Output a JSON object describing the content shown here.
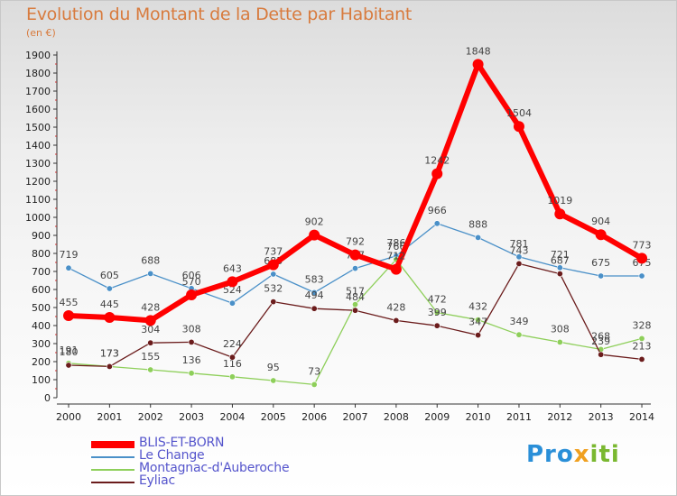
{
  "title": "Evolution du Montant de la Dette par Habitant",
  "subtitle": "(en €)",
  "logo": {
    "part1": "Pro",
    "part2": "x",
    "part3": "iti"
  },
  "chart_data": {
    "type": "line",
    "x": [
      "2000",
      "2001",
      "2002",
      "2003",
      "2004",
      "2005",
      "2006",
      "2007",
      "2008",
      "2009",
      "2010",
      "2011",
      "2012",
      "2013",
      "2014"
    ],
    "ylim": [
      0,
      1900
    ],
    "yticks": [
      0,
      100,
      200,
      300,
      400,
      500,
      600,
      700,
      800,
      900,
      1000,
      1100,
      1200,
      1300,
      1400,
      1500,
      1600,
      1700,
      1800,
      1900
    ],
    "grid": false,
    "legend_position": "bottom-left",
    "series": [
      {
        "name": "Le Change",
        "color": "#4a90c8",
        "values": [
          719,
          605,
          688,
          606,
          524,
          685,
          583,
          717,
          786,
          966,
          888,
          781,
          721,
          675,
          675
        ]
      },
      {
        "name": "Montagnac-d'Auberoche",
        "color": "#8ecf5a",
        "values": [
          191,
          173,
          155,
          136,
          116,
          95,
          73,
          517,
          766,
          472,
          432,
          349,
          308,
          268,
          328
        ]
      },
      {
        "name": "Eyliac",
        "color": "#6b1c1c",
        "values": [
          180,
          173,
          304,
          308,
          224,
          532,
          494,
          484,
          428,
          399,
          347,
          743,
          687,
          239,
          213
        ]
      },
      {
        "name": "BLIS-ET-BORN",
        "color": "#ff0000",
        "values": [
          455,
          445,
          428,
          570,
          643,
          737,
          902,
          792,
          712,
          1242,
          1848,
          1504,
          1019,
          904,
          773
        ]
      }
    ]
  }
}
